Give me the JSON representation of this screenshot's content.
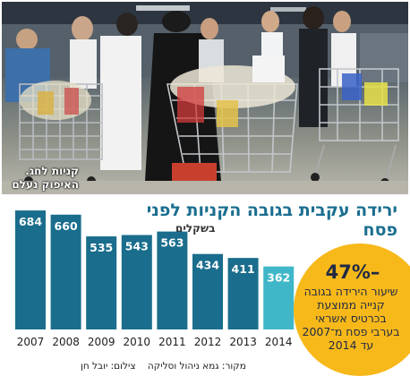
{
  "photo": {
    "credit": "קניות לחג. האיפוק נעלם"
  },
  "title": "ירידה עקבית בגובה הקניות לפני פסח",
  "unit": "בשקלים",
  "highlight": {
    "value": "47%–",
    "text": "שיעור הירידה בגובה קנייה ממוצעת בכרטיס אשראי בערבי פסח מ־2007 עד 2014"
  },
  "footer": {
    "source": "מקור: גמא ניהול וסליקה",
    "photo_credit": "צילום: יובל חן"
  },
  "colors": {
    "bar": "#1a6d8c",
    "bar_highlight": "#3fb7c9",
    "label": "#ffffff",
    "title": "#1a6e8f",
    "circle": "#f7b81a"
  },
  "chart_data": {
    "type": "bar",
    "categories": [
      "2007",
      "2008",
      "2009",
      "2010",
      "2011",
      "2012",
      "2013",
      "2014"
    ],
    "values": [
      684,
      660,
      535,
      543,
      563,
      434,
      411,
      362
    ],
    "highlight_index": 7,
    "title": "ירידה עקבית בגובה הקניות לפני פסח",
    "xlabel": "",
    "ylabel": "בשקלים",
    "ylim": [
      0,
      700
    ],
    "grid": false,
    "legend": "none"
  }
}
